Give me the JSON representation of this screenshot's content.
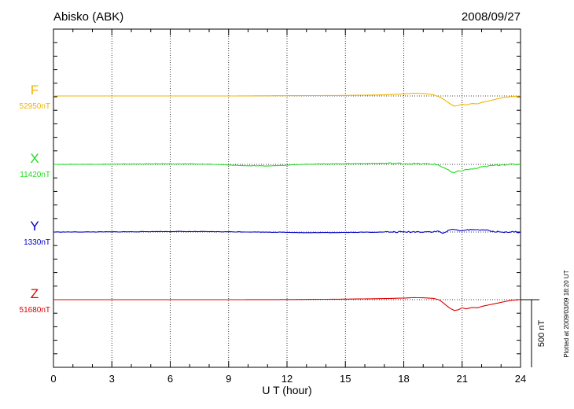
{
  "header": {
    "station": "Abisko (ABK)",
    "date": "2008/09/27"
  },
  "footer": {
    "plotted_note": "Plotted at 2009/03/09 18:20 UT",
    "scale_label": "500 nT"
  },
  "chart_data": {
    "type": "line",
    "title": "Abisko (ABK)",
    "date": "2008/09/27",
    "xlabel": "U T (hour)",
    "xlim": [
      0,
      24
    ],
    "xticks": [
      0,
      3,
      6,
      9,
      12,
      15,
      18,
      21,
      24
    ],
    "xtick_labels": [
      "0",
      "3",
      "6",
      "9",
      "12",
      "15",
      "18",
      "21",
      "24"
    ],
    "grid": true,
    "scale_bar_nT": 500,
    "series": [
      {
        "name": "F",
        "baseline_label": "52950nT",
        "color": "#f0b400",
        "x": [
          0,
          3,
          6,
          9,
          12,
          15,
          17,
          18,
          18.5,
          19,
          19.5,
          19.8,
          20,
          20.2,
          20.4,
          20.6,
          20.8,
          21,
          21.2,
          21.5,
          21.8,
          22,
          22.5,
          23,
          23.5,
          24
        ],
        "values": [
          0,
          0,
          0,
          0,
          2,
          4,
          8,
          15,
          20,
          18,
          10,
          -5,
          -20,
          -40,
          -60,
          -75,
          -70,
          -62,
          -66,
          -56,
          -58,
          -48,
          -32,
          -15,
          -5,
          0
        ]
      },
      {
        "name": "X",
        "baseline_label": "11420nT",
        "color": "#22dd22",
        "x": [
          0,
          3,
          6,
          8,
          9,
          10,
          11,
          12,
          13,
          15,
          17,
          18,
          19,
          19.5,
          19.8,
          20,
          20.2,
          20.4,
          20.6,
          20.8,
          21,
          21.2,
          21.5,
          21.8,
          22,
          22.5,
          23,
          23.5,
          24
        ],
        "values": [
          0,
          2,
          4,
          2,
          -5,
          -10,
          -12,
          -5,
          2,
          5,
          8,
          6,
          4,
          2,
          -5,
          -20,
          -35,
          -55,
          -65,
          -50,
          -45,
          -40,
          -35,
          -28,
          -20,
          -10,
          -2,
          0,
          0
        ],
        "jitter": true
      },
      {
        "name": "Y",
        "baseline_label": "1330nT",
        "color": "#0000cc",
        "x": [
          0,
          3,
          6,
          9,
          12,
          13,
          15,
          17,
          18,
          19,
          19.5,
          19.8,
          20,
          20.2,
          20.4,
          20.6,
          20.8,
          21,
          21.2,
          21.5,
          21.8,
          22,
          22.5,
          23,
          24
        ],
        "values": [
          0,
          1,
          4,
          2,
          -2,
          -5,
          -3,
          0,
          0,
          2,
          2,
          5,
          -10,
          5,
          15,
          20,
          10,
          15,
          12,
          20,
          15,
          20,
          5,
          0,
          0
        ],
        "jitter": true
      },
      {
        "name": "Z",
        "baseline_label": "51680nT",
        "color": "#dd0000",
        "x": [
          0,
          3,
          6,
          9,
          12,
          15,
          17,
          18,
          18.5,
          19,
          19.5,
          19.8,
          20,
          20.2,
          20.4,
          20.6,
          20.8,
          21,
          21.2,
          21.5,
          21.8,
          22,
          22.5,
          23,
          23.5,
          24
        ],
        "values": [
          0,
          0,
          0,
          0,
          1,
          4,
          8,
          12,
          15,
          14,
          10,
          0,
          -20,
          -45,
          -65,
          -80,
          -75,
          -60,
          -68,
          -58,
          -60,
          -50,
          -35,
          -20,
          -5,
          0
        ]
      }
    ]
  }
}
